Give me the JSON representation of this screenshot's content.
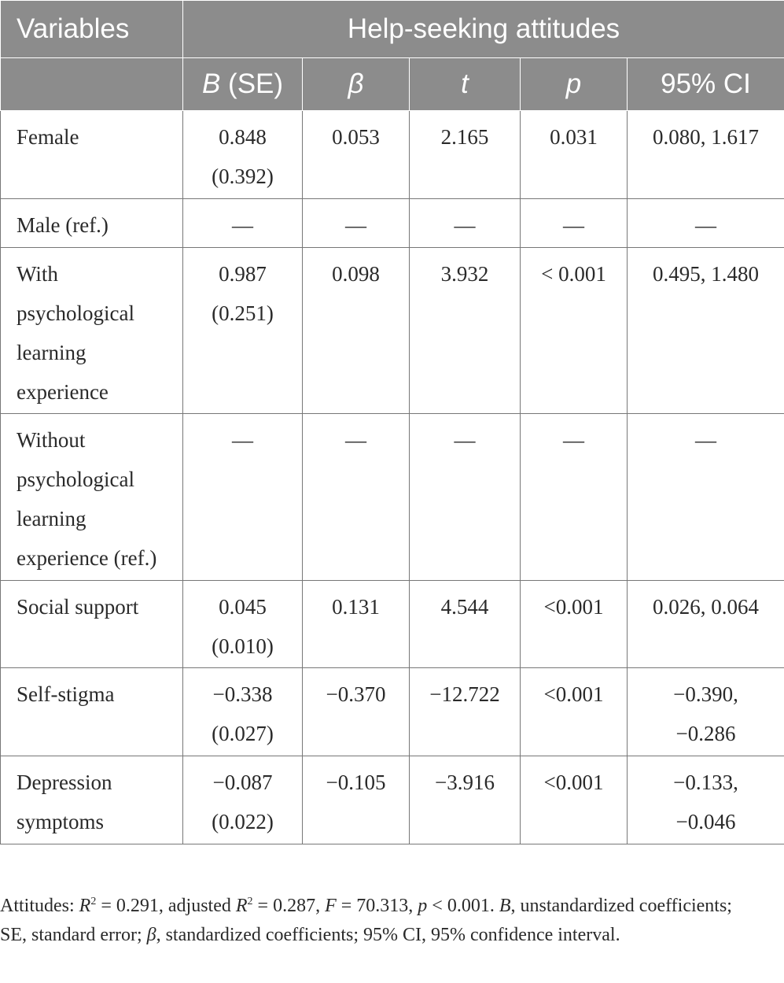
{
  "table": {
    "header": {
      "variables_label": "Variables",
      "group_label": "Help-seeking attitudes",
      "columns": [
        {
          "label": "B",
          "suffix": " (SE)",
          "italic": true
        },
        {
          "label": "β",
          "suffix": "",
          "italic": true
        },
        {
          "label": "t",
          "suffix": "",
          "italic": true
        },
        {
          "label": "p",
          "suffix": "",
          "italic": true
        },
        {
          "label": "95% CI",
          "suffix": "",
          "italic": false
        }
      ]
    },
    "rows": [
      {
        "variable": [
          "Female"
        ],
        "b_se": [
          "0.848",
          "(0.392)"
        ],
        "beta": "0.053",
        "t": "2.165",
        "p": "0.031",
        "ci": [
          "0.080, 1.617"
        ]
      },
      {
        "variable": [
          "Male (ref.)"
        ],
        "b_se": [
          "—"
        ],
        "beta": "—",
        "t": "—",
        "p": "—",
        "ci": [
          "—"
        ]
      },
      {
        "variable": [
          "With",
          "psychological",
          "learning",
          "experience"
        ],
        "b_se": [
          "0.987",
          "(0.251)"
        ],
        "beta": "0.098",
        "t": "3.932",
        "p": "< 0.001",
        "ci": [
          "0.495, 1.480"
        ]
      },
      {
        "variable": [
          "Without",
          "psychological",
          "learning",
          "experience (ref.)"
        ],
        "b_se": [
          "—"
        ],
        "beta": "—",
        "t": "—",
        "p": "—",
        "ci": [
          "—"
        ]
      },
      {
        "variable": [
          "Social support"
        ],
        "b_se": [
          "0.045",
          "(0.010)"
        ],
        "beta": "0.131",
        "t": "4.544",
        "p": "<0.001",
        "ci": [
          "0.026, 0.064"
        ]
      },
      {
        "variable": [
          "Self-stigma"
        ],
        "b_se": [
          "−0.338",
          "(0.027)"
        ],
        "beta": "−0.370",
        "t": "−12.722",
        "p": "<0.001",
        "ci": [
          "−0.390,",
          "−0.286"
        ]
      },
      {
        "variable": [
          "Depression",
          "symptoms"
        ],
        "b_se": [
          "−0.087",
          "(0.022)"
        ],
        "beta": "−0.105",
        "t": "−3.916",
        "p": "<0.001",
        "ci": [
          "−0.133,",
          "−0.046"
        ]
      }
    ]
  },
  "note": {
    "prefix": "Attitudes: ",
    "r2_symbol": "R",
    "sup2": "2",
    "r2_value": " = 0.291, adjusted ",
    "adj_r2_symbol": "R",
    "adj_r2_value": " = 0.287, ",
    "f_symbol": "F",
    "f_value": " = 70.313, ",
    "p_symbol": "p",
    "p_value": " < 0.001. ",
    "b_symbol": "B",
    "b_def": ", unstandardized coefficients; SE, standard error; ",
    "beta_symbol": "β",
    "beta_def": ", standardized coefficients; 95% CI, 95% confidence interval."
  },
  "colors": {
    "header_bg": "#8c8c8c",
    "header_text": "#ffffff",
    "grid": "#777777",
    "body_text": "#2a2a2a"
  }
}
